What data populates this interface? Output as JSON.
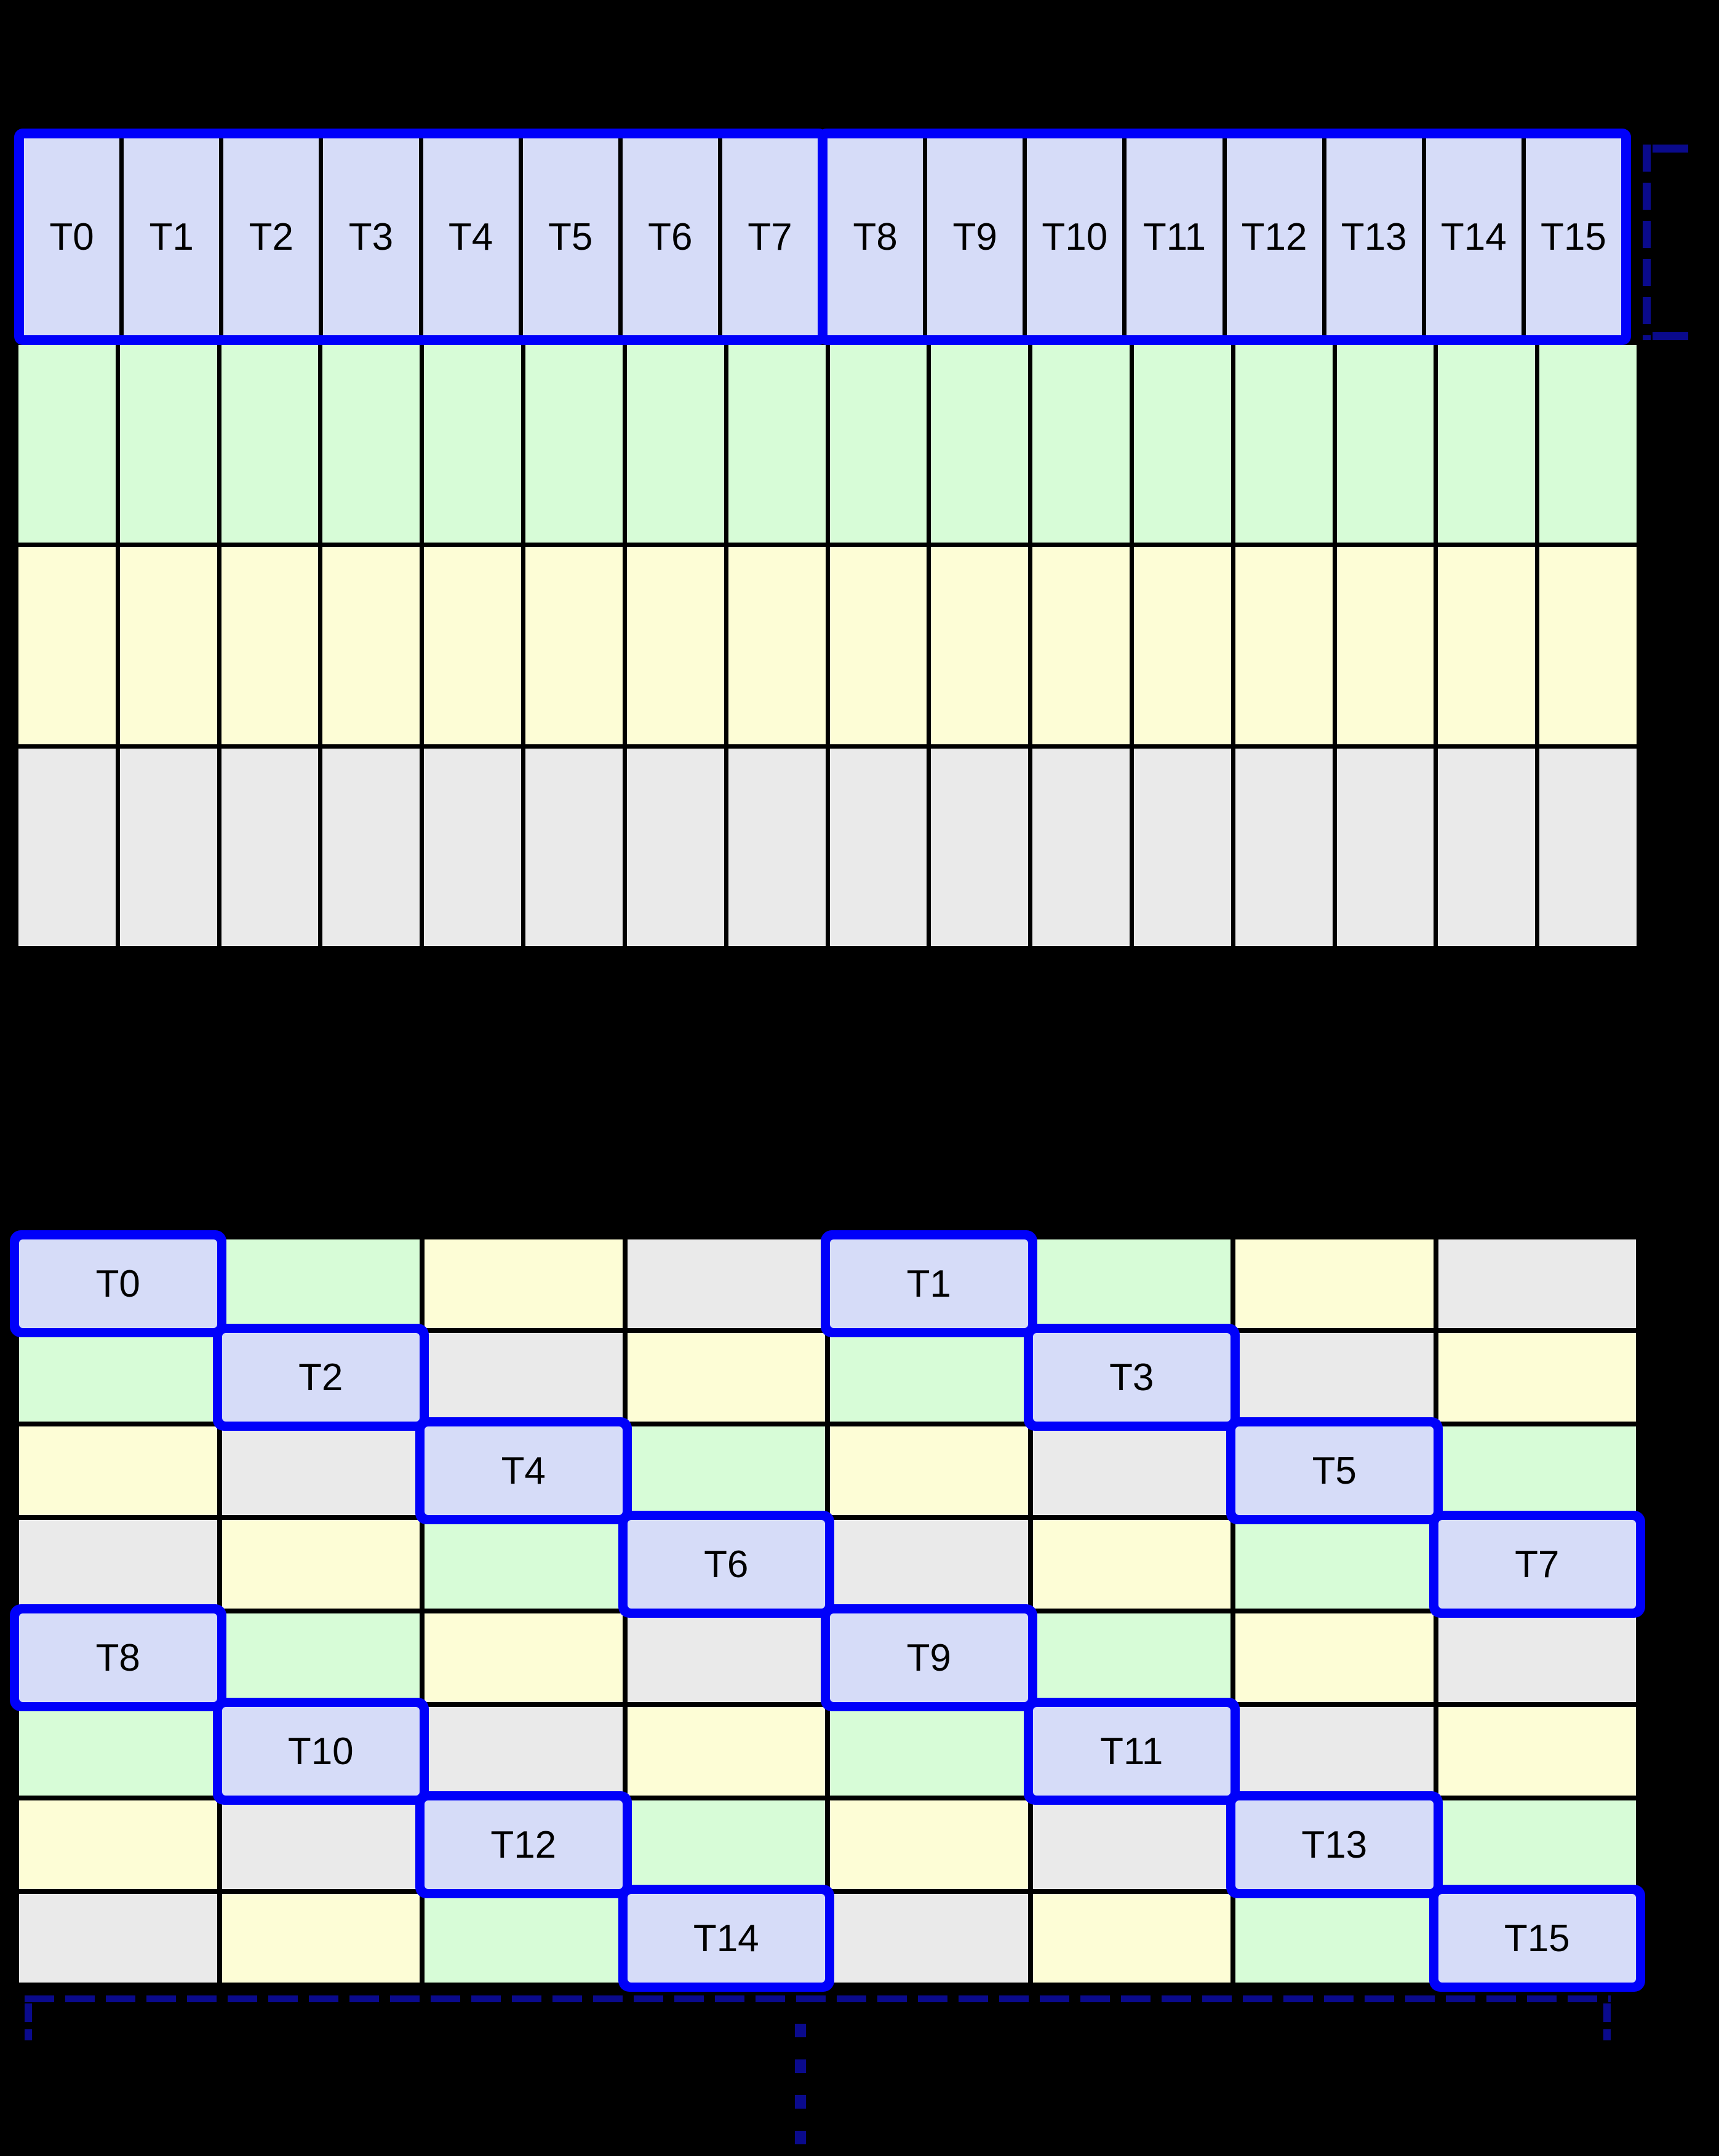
{
  "colors": {
    "background": "#000000",
    "lavender": "#D6DCF8",
    "green": "#D7FCD7",
    "yellow": "#FDFDD6",
    "gray": "#EAEAEA",
    "highlight_border": "#0000FA",
    "bracket_navy": "#0A0A8C",
    "cell_border": "#000000"
  },
  "top_table": {
    "columns": 16,
    "header": {
      "groups": [
        {
          "cells": [
            "T0",
            "T1",
            "T2",
            "T3",
            "T4",
            "T5",
            "T6",
            "T7"
          ]
        },
        {
          "cells": [
            "T8",
            "T9",
            "T10",
            "T11",
            "T12",
            "T13",
            "T14",
            "T15"
          ]
        }
      ]
    },
    "body_row_colors": [
      "green",
      "yellow",
      "gray"
    ]
  },
  "bottom_table": {
    "columns": 8,
    "rows": [
      [
        {
          "c": "lavender",
          "t": "T0",
          "hl": true
        },
        {
          "c": "green"
        },
        {
          "c": "yellow"
        },
        {
          "c": "gray"
        },
        {
          "c": "lavender",
          "t": "T1",
          "hl": true
        },
        {
          "c": "green"
        },
        {
          "c": "yellow"
        },
        {
          "c": "gray"
        }
      ],
      [
        {
          "c": "green"
        },
        {
          "c": "lavender",
          "t": "T2",
          "hl": true
        },
        {
          "c": "gray"
        },
        {
          "c": "yellow"
        },
        {
          "c": "green"
        },
        {
          "c": "lavender",
          "t": "T3",
          "hl": true
        },
        {
          "c": "gray"
        },
        {
          "c": "yellow"
        }
      ],
      [
        {
          "c": "yellow"
        },
        {
          "c": "gray"
        },
        {
          "c": "lavender",
          "t": "T4",
          "hl": true
        },
        {
          "c": "green"
        },
        {
          "c": "yellow"
        },
        {
          "c": "gray"
        },
        {
          "c": "lavender",
          "t": "T5",
          "hl": true
        },
        {
          "c": "green"
        }
      ],
      [
        {
          "c": "gray"
        },
        {
          "c": "yellow"
        },
        {
          "c": "green"
        },
        {
          "c": "lavender",
          "t": "T6",
          "hl": true
        },
        {
          "c": "gray"
        },
        {
          "c": "yellow"
        },
        {
          "c": "green"
        },
        {
          "c": "lavender",
          "t": "T7",
          "hl": true
        }
      ],
      [
        {
          "c": "lavender",
          "t": "T8",
          "hl": true
        },
        {
          "c": "green"
        },
        {
          "c": "yellow"
        },
        {
          "c": "gray"
        },
        {
          "c": "lavender",
          "t": "T9",
          "hl": true
        },
        {
          "c": "green"
        },
        {
          "c": "yellow"
        },
        {
          "c": "gray"
        }
      ],
      [
        {
          "c": "green"
        },
        {
          "c": "lavender",
          "t": "T10",
          "hl": true
        },
        {
          "c": "gray"
        },
        {
          "c": "yellow"
        },
        {
          "c": "green"
        },
        {
          "c": "lavender",
          "t": "T11",
          "hl": true
        },
        {
          "c": "gray"
        },
        {
          "c": "yellow"
        }
      ],
      [
        {
          "c": "yellow"
        },
        {
          "c": "gray"
        },
        {
          "c": "lavender",
          "t": "T12",
          "hl": true
        },
        {
          "c": "green"
        },
        {
          "c": "yellow"
        },
        {
          "c": "gray"
        },
        {
          "c": "lavender",
          "t": "T13",
          "hl": true
        },
        {
          "c": "green"
        }
      ],
      [
        {
          "c": "gray"
        },
        {
          "c": "yellow"
        },
        {
          "c": "green"
        },
        {
          "c": "lavender",
          "t": "T14",
          "hl": true
        },
        {
          "c": "gray"
        },
        {
          "c": "yellow"
        },
        {
          "c": "green"
        },
        {
          "c": "lavender",
          "t": "T15",
          "hl": true
        }
      ]
    ]
  }
}
